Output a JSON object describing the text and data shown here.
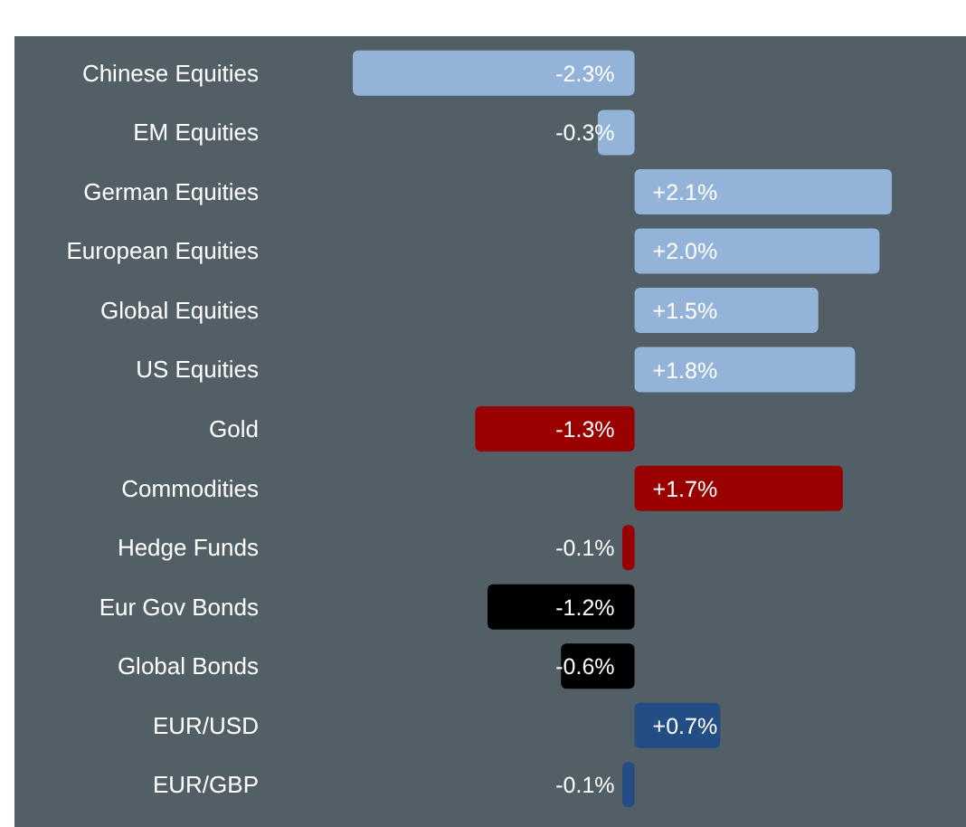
{
  "chart_data": {
    "type": "bar",
    "orientation": "horizontal",
    "categories": [
      "Chinese Equities",
      "EM Equities",
      "German Equities",
      "European Equities",
      "Global Equities",
      "US Equities",
      "Gold",
      "Commodities",
      "Hedge Funds",
      "Eur Gov Bonds",
      "Global Bonds",
      "EUR/USD",
      "EUR/GBP"
    ],
    "values": [
      -2.3,
      -0.3,
      2.1,
      2.0,
      1.5,
      1.8,
      -1.3,
      1.7,
      -0.1,
      -1.2,
      -0.6,
      0.7,
      -0.1
    ],
    "value_labels": [
      "-2.3%",
      "-0.3%",
      "+2.1%",
      "+2.0%",
      "+1.5%",
      "+1.8%",
      "-1.3%",
      "+1.7%",
      "-0.1%",
      "-1.2%",
      "-0.6%",
      "+0.7%",
      "-0.1%"
    ],
    "colors": [
      "#94b3d8",
      "#94b3d8",
      "#94b3d8",
      "#94b3d8",
      "#94b3d8",
      "#94b3d8",
      "#990000",
      "#990000",
      "#990000",
      "#000000",
      "#000000",
      "#234d85",
      "#234d85"
    ],
    "grid": false,
    "legend": false
  }
}
